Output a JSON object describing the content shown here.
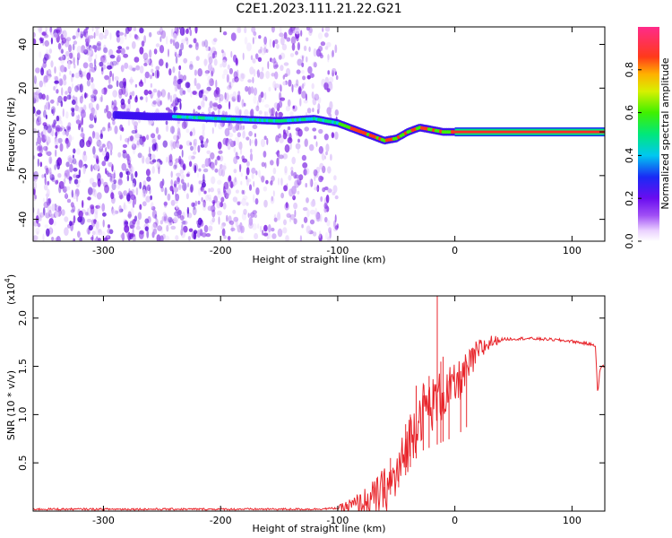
{
  "title": "C2E1.2023.111.21.22.G21",
  "colors": {
    "snr_line": "#e8262c",
    "dots": "#7a1ee0",
    "axis": "#000000"
  },
  "chart_data": [
    {
      "type": "heatmap",
      "xlabel": "Height of straight line (km)",
      "ylabel": "Frequency (Hz)",
      "xlim": [
        -360,
        128
      ],
      "ylim": [
        -50,
        48
      ],
      "x_ticks": [
        -300,
        -200,
        -100,
        0,
        100
      ],
      "x_tick_labels": [
        "-300",
        "-200",
        "-100",
        "0",
        "100"
      ],
      "y_ticks": [
        -40,
        -20,
        0,
        20,
        40
      ],
      "y_tick_labels": [
        "-40",
        "-20",
        "0",
        "20",
        "40"
      ],
      "ridge": {
        "x": [
          -300,
          -260,
          -240,
          -200,
          -150,
          -120,
          -100,
          -85,
          -70,
          -60,
          -50,
          -40,
          -30,
          -20,
          -10,
          0,
          128
        ],
        "y": [
          8,
          7,
          7,
          6,
          5,
          6,
          4,
          1,
          -2,
          -4,
          -3,
          0,
          2,
          1,
          0,
          0,
          0
        ]
      },
      "colorbar": {
        "label": "Normalized spectral amplitude",
        "range": [
          0,
          1
        ],
        "ticks": [
          0.0,
          0.2,
          0.4,
          0.6,
          0.8
        ],
        "tick_labels": [
          "0.0",
          "0.2",
          "0.4",
          "0.6",
          "0.8"
        ]
      },
      "grid": false
    },
    {
      "type": "line",
      "xlabel": "Height of straight line (km)",
      "ylabel": "SNR (10 * v/v)",
      "scale_note": "(x10",
      "scale_exp": "4",
      "scale_close": ")",
      "xlim": [
        -360,
        128
      ],
      "ylim": [
        0,
        2.23
      ],
      "x_ticks": [
        -300,
        -200,
        -100,
        0,
        100
      ],
      "x_tick_labels": [
        "-300",
        "-200",
        "-100",
        "0",
        "100"
      ],
      "y_ticks": [
        0.5,
        1.0,
        1.5,
        2.0
      ],
      "y_tick_labels": [
        "0.5",
        "1.0",
        "1.5",
        "2.0"
      ],
      "series": [
        {
          "x": [
            -360,
            -300,
            -200,
            -120,
            -100,
            -80,
            -70,
            -60,
            -50,
            -45,
            -40,
            -35,
            -30,
            -25,
            -20,
            -15,
            -10,
            0,
            10,
            20,
            30,
            40,
            60,
            80,
            100,
            120,
            122,
            124,
            126,
            128
          ],
          "y": [
            0.02,
            0.02,
            0.02,
            0.02,
            0.03,
            0.07,
            0.12,
            0.22,
            0.35,
            0.5,
            0.7,
            0.85,
            1.0,
            1.08,
            1.1,
            1.15,
            1.2,
            1.28,
            1.45,
            1.65,
            1.75,
            1.78,
            1.79,
            1.78,
            1.76,
            1.72,
            1.2,
            1.48,
            1.5,
            1.5
          ]
        }
      ],
      "spikes": {
        "x": [
          -60,
          -55,
          -48,
          -42,
          -38,
          -33,
          -27,
          -22,
          -15,
          -12,
          -10,
          -5,
          5,
          10
        ],
        "y": [
          0.25,
          0.55,
          0.35,
          0.9,
          1.0,
          1.3,
          1.2,
          1.4,
          2.23,
          1.55,
          1.6,
          1.35,
          1.45,
          1.55
        ]
      },
      "grid": false
    }
  ]
}
